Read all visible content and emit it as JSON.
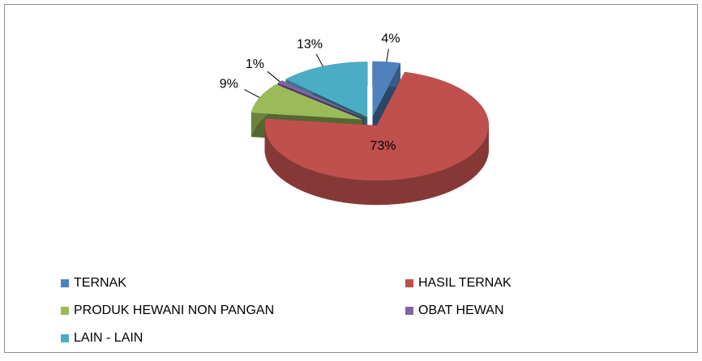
{
  "chart_data": {
    "type": "pie3d",
    "categories": [
      "TERNAK",
      "HASIL TERNAK",
      "PRODUK HEWANI NON PANGAN",
      "OBAT HEWAN",
      "LAIN - LAIN"
    ],
    "values": [
      4,
      73,
      9,
      1,
      13
    ],
    "value_labels": [
      "4%",
      "73%",
      "9%",
      "1%",
      "13%"
    ],
    "colors": [
      "#4f81bd",
      "#c0504d",
      "#9bbb59",
      "#8064a2",
      "#4bacc6"
    ],
    "legend": "bottom"
  }
}
